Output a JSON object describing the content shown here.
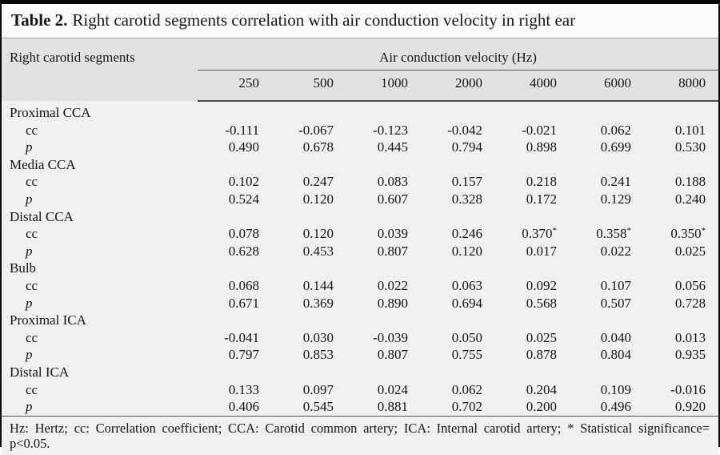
{
  "title": {
    "number": "Table 2.",
    "caption": "Right carotid segments correlation with air conduction velocity in right ear"
  },
  "header": {
    "row_header": "Right carotid segments",
    "group_header": "Air conduction velocity (Hz)",
    "columns": [
      "250",
      "500",
      "1000",
      "2000",
      "4000",
      "6000",
      "8000"
    ]
  },
  "groups": [
    {
      "name": "Proximal CCA",
      "rows": [
        {
          "label": "cc",
          "italic": false,
          "values": [
            "-0.111",
            "-0.067",
            "-0.123",
            "-0.042",
            "-0.021",
            "0.062",
            "0.101"
          ]
        },
        {
          "label": "p",
          "italic": true,
          "values": [
            "0.490",
            "0.678",
            "0.445",
            "0.794",
            "0.898",
            "0.699",
            "0.530"
          ]
        }
      ]
    },
    {
      "name": "Media CCA",
      "rows": [
        {
          "label": "cc",
          "italic": false,
          "values": [
            "0.102",
            "0.247",
            "0.083",
            "0.157",
            "0.218",
            "0.241",
            "0.188"
          ]
        },
        {
          "label": "p",
          "italic": true,
          "values": [
            "0.524",
            "0.120",
            "0.607",
            "0.328",
            "0.172",
            "0.129",
            "0.240"
          ]
        }
      ]
    },
    {
      "name": "Distal CCA",
      "rows": [
        {
          "label": "cc",
          "italic": false,
          "values": [
            "0.078",
            "0.120",
            "0.039",
            "0.246",
            "0.370*",
            "0.358*",
            "0.350*"
          ]
        },
        {
          "label": "p",
          "italic": true,
          "values": [
            "0.628",
            "0.453",
            "0.807",
            "0.120",
            "0.017",
            "0.022",
            "0.025"
          ]
        }
      ]
    },
    {
      "name": "Bulb",
      "rows": [
        {
          "label": "cc",
          "italic": false,
          "values": [
            "0.068",
            "0.144",
            "0.022",
            "0.063",
            "0.092",
            "0.107",
            "0.056"
          ]
        },
        {
          "label": "p",
          "italic": true,
          "values": [
            "0.671",
            "0.369",
            "0.890",
            "0.694",
            "0.568",
            "0.507",
            "0.728"
          ]
        }
      ]
    },
    {
      "name": "Proximal ICA",
      "rows": [
        {
          "label": "cc",
          "italic": false,
          "values": [
            "-0.041",
            "0.030",
            "-0.039",
            "0.050",
            "0.025",
            "0.040",
            "0.013"
          ]
        },
        {
          "label": "p",
          "italic": true,
          "values": [
            "0.797",
            "0.853",
            "0.807",
            "0.755",
            "0.878",
            "0.804",
            "0.935"
          ]
        }
      ]
    },
    {
      "name": "Distal ICA",
      "rows": [
        {
          "label": "cc",
          "italic": false,
          "values": [
            "0.133",
            "0.097",
            "0.024",
            "0.062",
            "0.204",
            "0.109",
            "-0.016"
          ]
        },
        {
          "label": "p",
          "italic": true,
          "values": [
            "0.406",
            "0.545",
            "0.881",
            "0.702",
            "0.200",
            "0.496",
            "0.920"
          ]
        }
      ]
    }
  ],
  "footnote": "Hz: Hertz; cc: Correlation coefficient; CCA: Carotid common artery; ICA: Internal carotid artery; * Statistical significance= p<0.05.",
  "colors": {
    "outer_border": "#060606",
    "title_background": "#fcfcfc",
    "header_band_background": "#e2e2e2",
    "body_background": "#f0f0f0",
    "rule_dark": "#4d4d4d",
    "text": "#161616"
  }
}
